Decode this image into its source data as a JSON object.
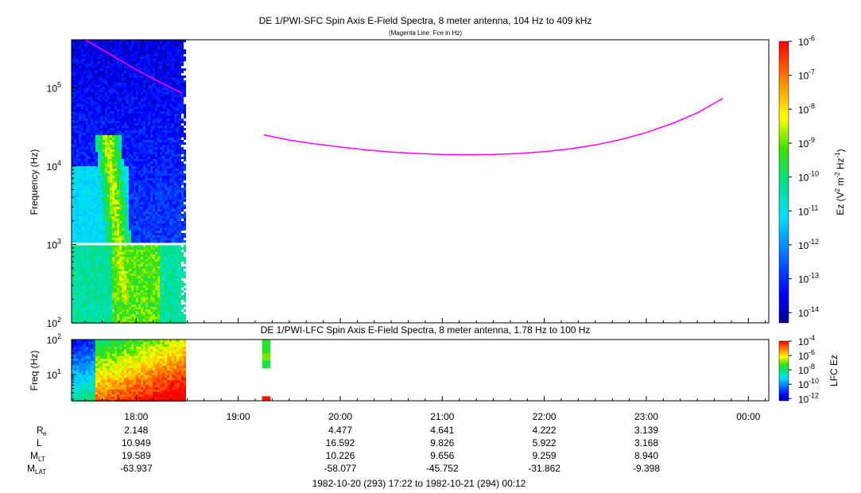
{
  "chart_data": [
    {
      "type": "heatmap",
      "title": "DE 1/PWI-SFC  Spin Axis E-Field Spectra, 8 meter antenna, 104 Hz to 409 kHz",
      "subtitle": "(Magenta Line: Fce in Hz)",
      "ylabel": "Frequency (Hz)",
      "yscale": "log",
      "ylim": [
        100,
        409000
      ],
      "y_ticks": [
        {
          "value": 100,
          "base": "10",
          "exp": "2"
        },
        {
          "value": 1000,
          "base": "10",
          "exp": "3"
        },
        {
          "value": 10000,
          "base": "10",
          "exp": "4"
        },
        {
          "value": 100000,
          "base": "10",
          "exp": "5"
        }
      ],
      "xlim": [
        "1982-10-20 17:22",
        "1982-10-21 00:12"
      ],
      "data_coverage": [
        "1982-10-20 17:22",
        "1982-10-20 18:28"
      ],
      "colorbar": {
        "label_main": "Ez (V",
        "label_parts": [
          "2",
          " m",
          "-2",
          " Hz",
          "-1",
          ")"
        ],
        "scale": "log",
        "range_exp": [
          -14.3,
          -6
        ],
        "ticks": [
          {
            "base": "10",
            "exp": "-6"
          },
          {
            "base": "10",
            "exp": "-7"
          },
          {
            "base": "10",
            "exp": "-8"
          },
          {
            "base": "10",
            "exp": "-9"
          },
          {
            "base": "10",
            "exp": "-10"
          },
          {
            "base": "10",
            "exp": "-11"
          },
          {
            "base": "10",
            "exp": "-12"
          },
          {
            "base": "10",
            "exp": "-13"
          },
          {
            "base": "10",
            "exp": "-14"
          }
        ]
      },
      "series": [
        {
          "name": "Fce in Hz",
          "color": "#ff00ff",
          "segments": [
            {
              "x": [
                "17:30",
                "17:45",
                "18:00",
                "18:15",
                "18:27"
              ],
              "y": [
                420000,
                265000,
                170000,
                115000,
                85000
              ]
            },
            {
              "x": [
                "19:15",
                "19:30",
                "19:45",
                "20:00",
                "20:15",
                "20:30",
                "20:45",
                "21:00",
                "21:15",
                "21:30",
                "21:45",
                "22:00",
                "22:15",
                "22:30",
                "22:45",
                "23:00",
                "23:15",
                "23:30",
                "23:45"
              ],
              "y": [
                25000,
                21500,
                19200,
                17500,
                16100,
                15100,
                14500,
                14100,
                13950,
                14050,
                14500,
                15300,
                16600,
                18600,
                21800,
                26800,
                34800,
                47800,
                73000
              ]
            }
          ]
        }
      ]
    },
    {
      "type": "heatmap",
      "title": "DE 1/PWI-LFC  Spin Axis E-Field Spectra, 8 meter antenna, 1.78 Hz to 100 Hz",
      "ylabel": "Freq (Hz)",
      "yscale": "log",
      "ylim": [
        1.78,
        100
      ],
      "y_ticks": [
        {
          "value": 100,
          "base": "10",
          "exp": "2"
        },
        {
          "value": 10,
          "base": "10",
          "exp": "1"
        }
      ],
      "xlim": [
        "1982-10-20 17:22",
        "1982-10-21 00:12"
      ],
      "data_coverage": [
        [
          "1982-10-20 17:22",
          "1982-10-20 18:28"
        ],
        [
          "1982-10-20 19:14",
          "1982-10-20 19:19"
        ]
      ],
      "colorbar": {
        "label": "LFC Ez",
        "scale": "log",
        "range_exp": [
          -12.3,
          -4
        ],
        "ticks": [
          {
            "base": "10",
            "exp": "-4"
          },
          {
            "base": "10",
            "exp": "-6"
          },
          {
            "base": "10",
            "exp": "-8"
          },
          {
            "base": "10",
            "exp": "-10"
          },
          {
            "base": "10",
            "exp": "-12"
          }
        ]
      }
    }
  ],
  "x_axis": {
    "ticks": [
      "18:00",
      "19:00",
      "20:00",
      "21:00",
      "22:00",
      "23:00",
      "00:00"
    ],
    "ephemeris_columns": [
      "18:00",
      "20:00",
      "21:00",
      "22:00",
      "23:00"
    ],
    "rows": [
      {
        "label": "R",
        "sub": "e",
        "values": [
          "2.148",
          "4.477",
          "4.641",
          "4.222",
          "3.139"
        ]
      },
      {
        "label": "L",
        "sub": "",
        "values": [
          "10.949",
          "16.592",
          "9.826",
          "5.922",
          "3.168"
        ]
      },
      {
        "label": "M",
        "sub": "LT",
        "values": [
          "19.589",
          "10.226",
          "9.656",
          "9.259",
          "8.940"
        ]
      },
      {
        "label": "M",
        "sub": "LAT",
        "values": [
          "-63.937",
          "-58.077",
          "-45.752",
          "-31.862",
          "-9.398"
        ]
      }
    ],
    "time_range": "1982-10-20 (293) 17:22 to 1982-10-21 (294) 00:12"
  }
}
